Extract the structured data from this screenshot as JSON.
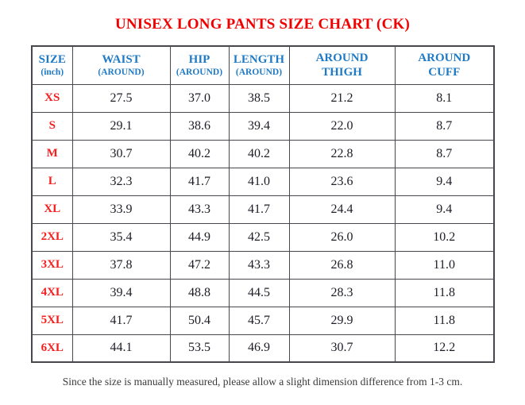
{
  "title": "UNISEX LONG PANTS SIZE CHART (CK)",
  "table": {
    "columns": [
      {
        "line1": "SIZE",
        "line2": "(inch)"
      },
      {
        "line1": "WAIST",
        "line2": "(AROUND)"
      },
      {
        "line1": "HIP",
        "line2": "(AROUND)"
      },
      {
        "line1": "LENGTH",
        "line2": "(AROUND)"
      },
      {
        "line1": "AROUND",
        "line2": "THIGH"
      },
      {
        "line1": "AROUND",
        "line2": "CUFF"
      }
    ],
    "rows": [
      {
        "size": "XS",
        "values": [
          "27.5",
          "37.0",
          "38.5",
          "21.2",
          "8.1"
        ]
      },
      {
        "size": "S",
        "values": [
          "29.1",
          "38.6",
          "39.4",
          "22.0",
          "8.7"
        ]
      },
      {
        "size": "M",
        "values": [
          "30.7",
          "40.2",
          "40.2",
          "22.8",
          "8.7"
        ]
      },
      {
        "size": "L",
        "values": [
          "32.3",
          "41.7",
          "41.0",
          "23.6",
          "9.4"
        ]
      },
      {
        "size": "XL",
        "values": [
          "33.9",
          "43.3",
          "41.7",
          "24.4",
          "9.4"
        ]
      },
      {
        "size": "2XL",
        "values": [
          "35.4",
          "44.9",
          "42.5",
          "26.0",
          "10.2"
        ]
      },
      {
        "size": "3XL",
        "values": [
          "37.8",
          "47.2",
          "43.3",
          "26.8",
          "11.0"
        ]
      },
      {
        "size": "4XL",
        "values": [
          "39.4",
          "48.8",
          "44.5",
          "28.3",
          "11.8"
        ]
      },
      {
        "size": "5XL",
        "values": [
          "41.7",
          "50.4",
          "45.7",
          "29.9",
          "11.8"
        ]
      },
      {
        "size": "6XL",
        "values": [
          "44.1",
          "53.5",
          "46.9",
          "30.7",
          "12.2"
        ]
      }
    ]
  },
  "note": "Since the size is manually measured, please allow a slight dimension difference from 1-3 cm.",
  "colors": {
    "title_red": "#f20000",
    "header_blue": "#1f7ac5",
    "size_red": "#f42020",
    "value_text": "#1d1d26",
    "border": "#47474d",
    "note_text": "#3b3b3b",
    "background": "#ffffff"
  }
}
